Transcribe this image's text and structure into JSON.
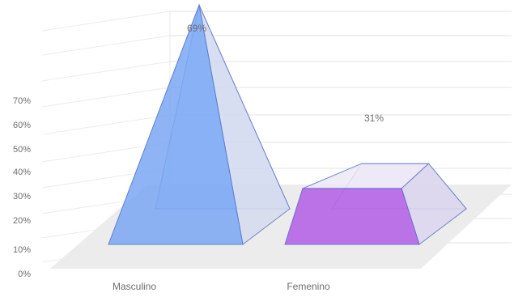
{
  "chart_data": {
    "type": "bar",
    "style": "3d-pyramid",
    "categories": [
      "Masculino",
      "Femenino"
    ],
    "values": [
      69,
      31
    ],
    "value_labels": [
      "69%",
      "31%"
    ],
    "colors": [
      "#7aa7f5",
      "#b665e6"
    ],
    "yticks": [
      "0%",
      "10%",
      "20%",
      "30%",
      "40%",
      "50%",
      "60%",
      "70%"
    ],
    "ylim": [
      0,
      70
    ],
    "grid": true,
    "legend": "none"
  }
}
